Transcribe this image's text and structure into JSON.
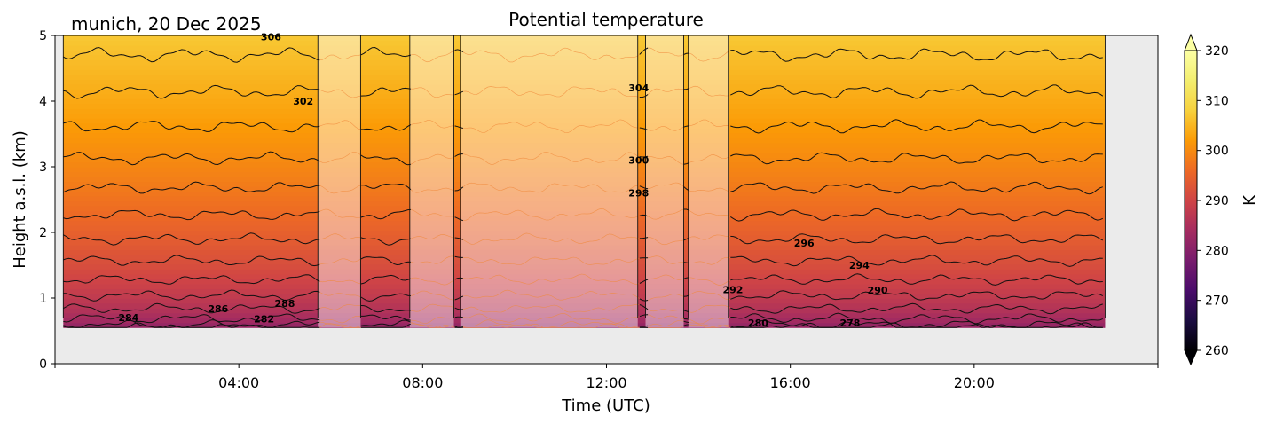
{
  "chart_data": {
    "type": "heatmap",
    "title": "Potential temperature",
    "location_date": "munich, 20 Dec 2025",
    "xlabel": "Time (UTC)",
    "ylabel": "Height a.s.l. (km)",
    "x_range_hours": [
      0,
      24
    ],
    "y_range_km": [
      0,
      5
    ],
    "x_ticks": [
      {
        "hour": 4,
        "label": "04:00"
      },
      {
        "hour": 8,
        "label": "08:00"
      },
      {
        "hour": 12,
        "label": "12:00"
      },
      {
        "hour": 16,
        "label": "16:00"
      },
      {
        "hour": 20,
        "label": "20:00"
      }
    ],
    "y_ticks": [
      {
        "value": 0,
        "label": "0"
      },
      {
        "value": 1,
        "label": "1"
      },
      {
        "value": 2,
        "label": "2"
      },
      {
        "value": 3,
        "label": "3"
      },
      {
        "value": 4,
        "label": "4"
      },
      {
        "value": 5,
        "label": "5"
      }
    ],
    "colorbar": {
      "label": "K",
      "range": [
        260,
        320
      ],
      "colormap": "inferno-like",
      "ticks": [
        "260",
        "270",
        "280",
        "290",
        "300",
        "310",
        "320"
      ]
    },
    "data_start_hour": 0.18,
    "data_end_hour": 22.85,
    "data_bottom_km": 0.55,
    "theta_surface_K": 280,
    "theta_top_K": 307,
    "contour_levels_K": [
      278,
      280,
      282,
      284,
      286,
      288,
      290,
      292,
      294,
      296,
      298,
      300,
      302,
      304,
      306
    ],
    "low_confidence_periods_hours": [
      [
        5.72,
        6.65
      ],
      [
        7.72,
        8.68
      ],
      [
        8.82,
        12.68
      ],
      [
        12.85,
        13.68
      ],
      [
        13.78,
        14.65
      ]
    ],
    "contour_labels": [
      {
        "text": "306",
        "hour": 4.7,
        "km": 4.98
      },
      {
        "text": "302",
        "hour": 5.4,
        "km": 4.0
      },
      {
        "text": "304",
        "hour": 12.7,
        "km": 4.2
      },
      {
        "text": "300",
        "hour": 12.7,
        "km": 3.1
      },
      {
        "text": "298",
        "hour": 12.7,
        "km": 2.6
      },
      {
        "text": "296",
        "hour": 16.3,
        "km": 1.84
      },
      {
        "text": "294",
        "hour": 17.5,
        "km": 1.5
      },
      {
        "text": "292",
        "hour": 14.75,
        "km": 1.13
      },
      {
        "text": "290",
        "hour": 17.9,
        "km": 1.12
      },
      {
        "text": "288",
        "hour": 5.0,
        "km": 0.92
      },
      {
        "text": "286",
        "hour": 3.55,
        "km": 0.84
      },
      {
        "text": "284",
        "hour": 1.6,
        "km": 0.7
      },
      {
        "text": "282",
        "hour": 4.55,
        "km": 0.68
      },
      {
        "text": "280",
        "hour": 15.3,
        "km": 0.62
      },
      {
        "text": "278",
        "hour": 17.3,
        "km": 0.62
      }
    ]
  }
}
